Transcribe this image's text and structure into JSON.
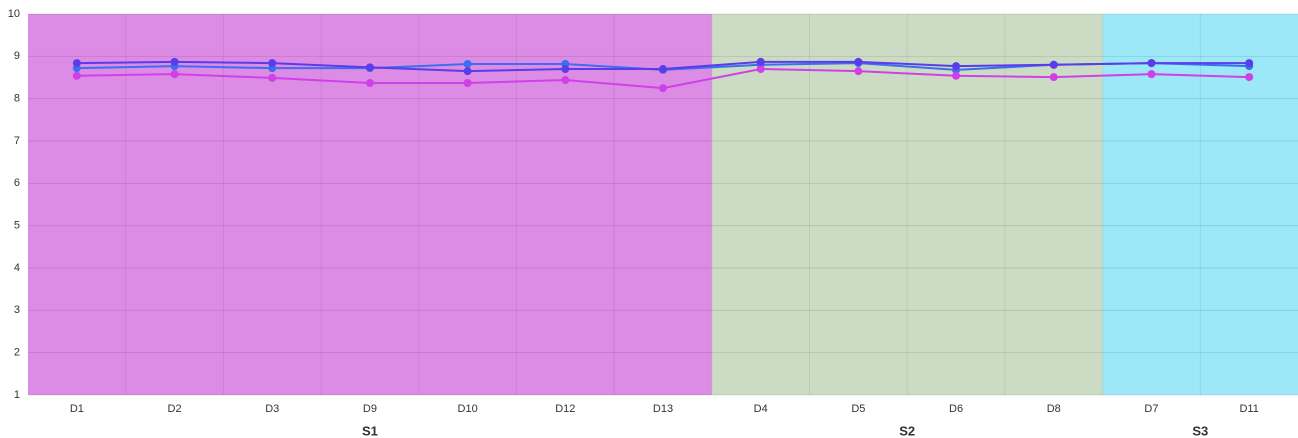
{
  "chart_data": {
    "type": "line",
    "categories": [
      "D1",
      "D2",
      "D3",
      "D9",
      "D10",
      "D12",
      "D13",
      "D4",
      "D5",
      "D6",
      "D8",
      "D7",
      "D11"
    ],
    "groups": [
      {
        "name": "S1",
        "span": 7,
        "color": "#dc8ce4",
        "label_color": "#c83cc8"
      },
      {
        "name": "S2",
        "span": 4,
        "color": "#ccdcc4",
        "label_color": "#94c084"
      },
      {
        "name": "S3",
        "span": 2,
        "color": "#9ce8f8",
        "label_color": "#3cc8f0"
      }
    ],
    "series": [
      {
        "color": "#3c6ef0",
        "values": [
          8.72,
          8.77,
          8.72,
          8.72,
          8.82,
          8.82,
          8.68,
          8.8,
          8.84,
          8.68,
          8.8,
          8.84,
          8.77
        ]
      },
      {
        "color": "#d040e8",
        "values": [
          8.54,
          8.58,
          8.49,
          8.37,
          8.37,
          8.44,
          8.25,
          8.7,
          8.65,
          8.54,
          8.51,
          8.58,
          8.51
        ]
      },
      {
        "color": "#5a3ce8",
        "values": [
          8.84,
          8.87,
          8.84,
          8.74,
          8.65,
          8.7,
          8.7,
          8.87,
          8.87,
          8.77,
          8.8,
          8.84,
          8.84
        ]
      }
    ],
    "ylim": [
      1,
      10
    ],
    "yticks": [
      1,
      2,
      3,
      4,
      5,
      6,
      7,
      8,
      9,
      10
    ],
    "grid": true
  }
}
